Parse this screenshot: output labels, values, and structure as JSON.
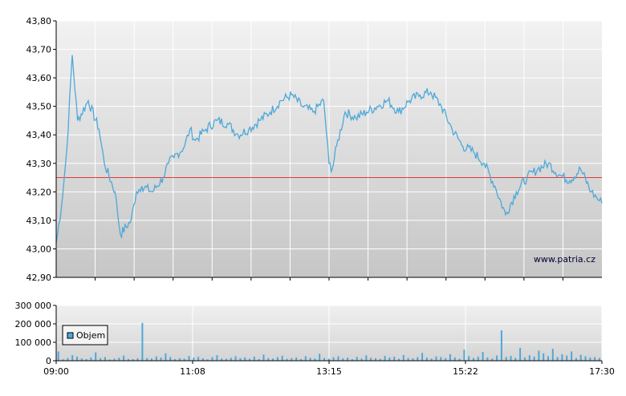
{
  "price_chart": {
    "watermark": "www.patria.cz",
    "colors": {
      "line": "#4da8d9",
      "reference": "#e03b3b",
      "grid": "#ffffff",
      "axis": "#000000"
    },
    "chart_data": {
      "type": "line",
      "title": "",
      "xlabel": "",
      "ylabel": "",
      "ylim": [
        42.9,
        43.8
      ],
      "y_ticks": [
        "43,80",
        "43,70",
        "43,60",
        "43,50",
        "43,40",
        "43,30",
        "43,20",
        "43,10",
        "43,00",
        "42,90"
      ],
      "reference_value": 43.25,
      "grid": true,
      "series": [
        {
          "x": [
            "09:00",
            "09:05",
            "09:10",
            "09:15",
            "09:20",
            "09:30",
            "09:40",
            "09:45",
            "09:55",
            "10:00",
            "10:10",
            "10:15",
            "10:20",
            "10:30",
            "10:40",
            "10:45",
            "10:50",
            "11:00",
            "11:05",
            "11:10",
            "11:20",
            "11:30",
            "11:40",
            "11:50",
            "12:00",
            "12:10",
            "12:20",
            "12:30",
            "12:40",
            "12:50",
            "13:00",
            "13:10",
            "13:15",
            "13:18",
            "13:22",
            "13:30",
            "13:40",
            "13:50",
            "14:00",
            "14:10",
            "14:20",
            "14:30",
            "14:40",
            "14:50",
            "15:00",
            "15:10",
            "15:20",
            "15:30",
            "15:40",
            "15:50",
            "16:00",
            "16:10",
            "16:20",
            "16:30",
            "16:40",
            "16:50",
            "17:00",
            "17:10",
            "17:20",
            "17:25",
            "17:30"
          ],
          "values": [
            43.02,
            43.15,
            43.35,
            43.68,
            43.45,
            43.52,
            43.42,
            43.3,
            43.2,
            43.05,
            43.1,
            43.2,
            43.22,
            43.2,
            43.25,
            43.3,
            43.32,
            43.36,
            43.42,
            43.38,
            43.42,
            43.45,
            43.44,
            43.4,
            43.42,
            43.45,
            43.48,
            43.52,
            43.54,
            43.5,
            43.48,
            43.52,
            43.3,
            43.28,
            43.36,
            43.48,
            43.46,
            43.48,
            43.5,
            43.52,
            43.48,
            43.52,
            43.54,
            43.55,
            43.5,
            43.42,
            43.36,
            43.34,
            43.3,
            43.22,
            43.12,
            43.2,
            43.25,
            43.28,
            43.3,
            43.26,
            43.24,
            43.28,
            43.2,
            43.18,
            43.16
          ]
        }
      ]
    }
  },
  "volume_chart": {
    "legend_label": "Objem",
    "colors": {
      "bar": "#4da8d9",
      "grid": "#ffffff"
    },
    "chart_data": {
      "type": "bar",
      "title": "",
      "xlabel": "",
      "ylabel": "",
      "ylim": [
        0,
        300000
      ],
      "y_ticks": [
        "300 000",
        "200 000",
        "100 000",
        "0"
      ],
      "x_ticks": [
        "09:00",
        "11:08",
        "13:15",
        "15:22",
        "17:30"
      ],
      "series": [
        {
          "name": "Objem",
          "values": [
            50000,
            8000,
            15000,
            30000,
            22000,
            12000,
            9000,
            18000,
            45000,
            14000,
            20000,
            7000,
            11000,
            16000,
            28000,
            10000,
            9000,
            13000,
            205000,
            15000,
            12000,
            24000,
            18000,
            40000,
            20000,
            9000,
            14000,
            11000,
            26000,
            17000,
            21000,
            13000,
            8000,
            19000,
            30000,
            12000,
            10000,
            16000,
            25000,
            14000,
            18000,
            11000,
            22000,
            9000,
            33000,
            15000,
            12000,
            20000,
            27000,
            10000,
            14000,
            18000,
            9000,
            25000,
            16000,
            12000,
            38000,
            15000,
            11000,
            19000,
            24000,
            13000,
            17000,
            9000,
            21000,
            12000,
            29000,
            16000,
            14000,
            10000,
            26000,
            18000,
            22000,
            11000,
            31000,
            15000,
            13000,
            19000,
            42000,
            17000,
            12000,
            24000,
            20000,
            14000,
            35000,
            18000,
            11000,
            60000,
            25000,
            15000,
            22000,
            48000,
            18000,
            12000,
            28000,
            165000,
            20000,
            26000,
            15000,
            70000,
            18000,
            30000,
            22000,
            55000,
            40000,
            25000,
            65000,
            20000,
            35000,
            28000,
            50000,
            15000,
            32000,
            24000,
            18000,
            20000,
            15000
          ]
        }
      ]
    }
  }
}
